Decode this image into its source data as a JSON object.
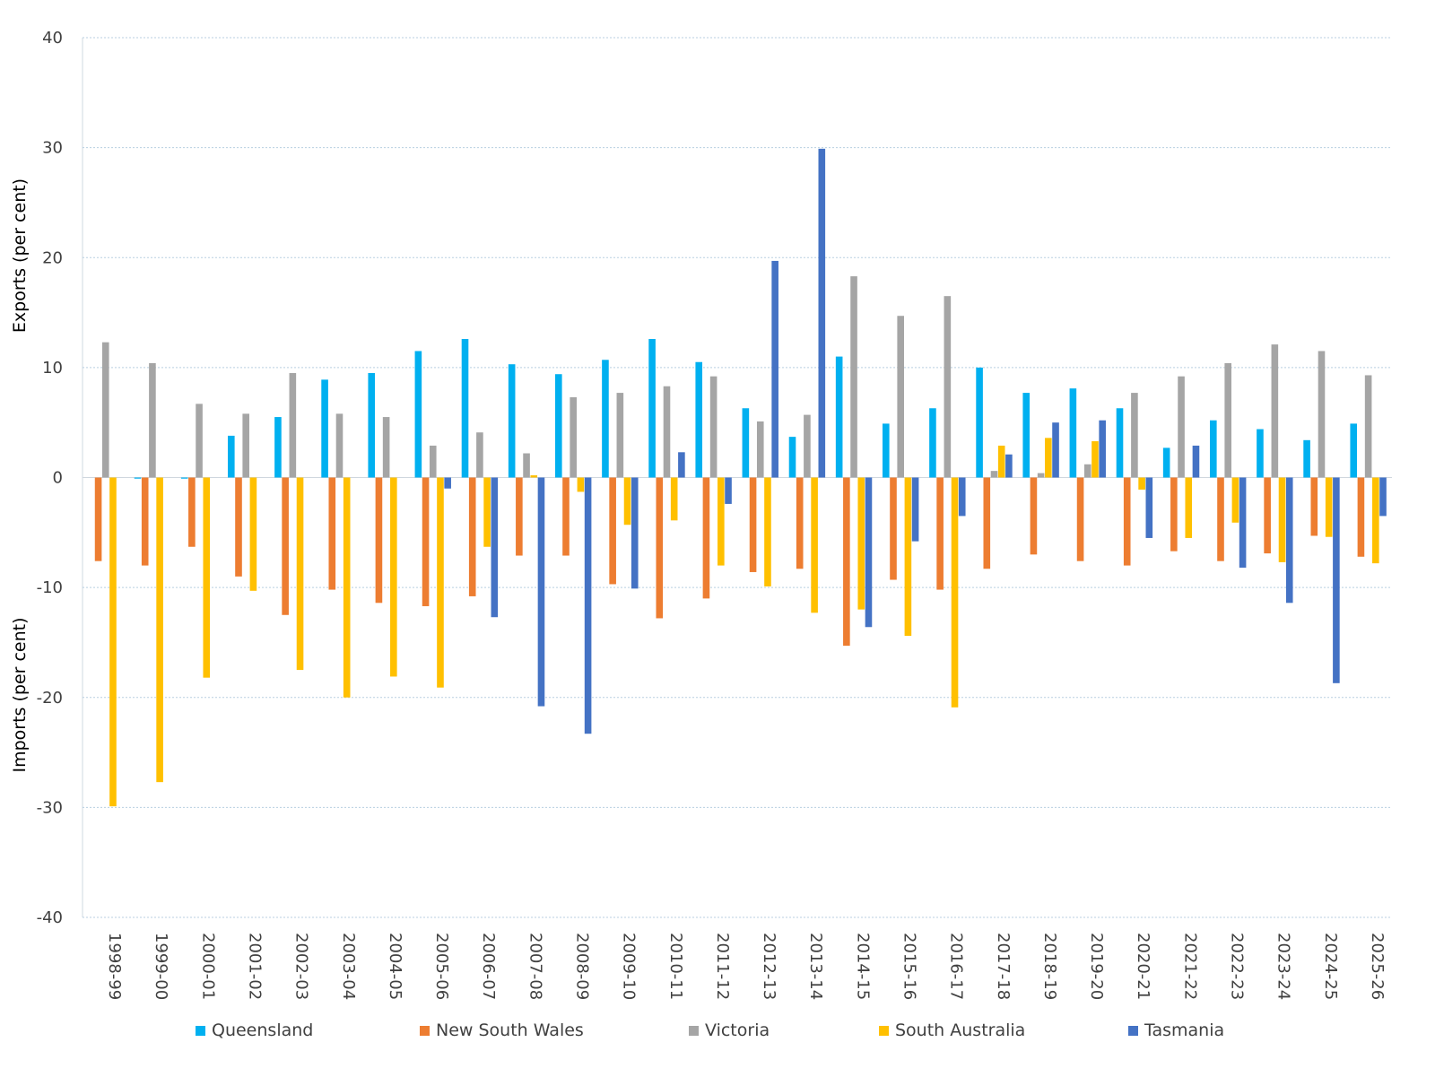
{
  "chart_data": {
    "type": "bar",
    "ylabel_top": "Exports (per cent)",
    "ylabel_bottom": "Imports (per cent)",
    "ylim": [
      -40,
      40
    ],
    "yticks": [
      40,
      30,
      20,
      10,
      0,
      -10,
      -20,
      -30,
      -40
    ],
    "grid": true,
    "legend_position": "bottom",
    "categories": [
      "1998-99",
      "1999-00",
      "2000-01",
      "2001-02",
      "2002-03",
      "2003-04",
      "2004-05",
      "2005-06",
      "2006-07",
      "2007-08",
      "2008-09",
      "2009-10",
      "2010-11",
      "2011-12",
      "2012-13",
      "2013-14",
      "2014-15",
      "2015-16",
      "2016-17",
      "2017-18",
      "2018-19",
      "2019-20",
      "2020-21",
      "2021-22",
      "2022-23",
      "2023-24",
      "2024-25",
      "2025-26"
    ],
    "series": [
      {
        "name": "Queensland",
        "color": "#00B0F0",
        "values": [
          0,
          -0.1,
          -0.1,
          3.8,
          5.5,
          8.9,
          9.5,
          11.5,
          12.6,
          10.3,
          9.4,
          10.7,
          12.6,
          10.5,
          6.3,
          3.7,
          11.0,
          4.9,
          6.3,
          10.0,
          7.7,
          8.1,
          6.3,
          2.7,
          5.2,
          4.4,
          3.4,
          4.9
        ]
      },
      {
        "name": "New South Wales",
        "color": "#ED7D31",
        "values": [
          -7.6,
          -8.0,
          -6.3,
          -9.0,
          -12.5,
          -10.2,
          -11.4,
          -11.7,
          -10.8,
          -7.1,
          -7.1,
          -9.7,
          -12.8,
          -11.0,
          -8.6,
          -8.3,
          -15.3,
          -9.3,
          -10.2,
          -8.3,
          -7.0,
          -7.6,
          -8.0,
          -6.7,
          -7.6,
          -6.9,
          -5.3,
          -7.2
        ]
      },
      {
        "name": "Victoria",
        "color": "#A5A5A5",
        "values": [
          12.3,
          10.4,
          6.7,
          5.8,
          9.5,
          5.8,
          5.5,
          2.9,
          4.1,
          2.2,
          7.3,
          7.7,
          8.3,
          9.2,
          5.1,
          5.7,
          18.3,
          14.7,
          16.5,
          0.6,
          0.4,
          1.2,
          7.7,
          9.2,
          10.4,
          12.1,
          11.5,
          9.3
        ]
      },
      {
        "name": "South Australia",
        "color": "#FFC000",
        "values": [
          -29.9,
          -27.7,
          -18.2,
          -10.3,
          -17.5,
          -20.0,
          -18.1,
          -19.1,
          -6.3,
          0.2,
          -1.3,
          -4.3,
          -3.9,
          -8.0,
          -9.9,
          -12.3,
          -12.0,
          -14.4,
          -20.9,
          2.9,
          3.6,
          3.3,
          -1.1,
          -5.5,
          -4.1,
          -7.7,
          -5.4,
          -7.8
        ]
      },
      {
        "name": "Tasmania",
        "color": "#4472C4",
        "values": [
          0,
          0,
          0,
          0,
          0,
          0,
          0,
          -1.0,
          -12.7,
          -20.8,
          -23.3,
          -10.1,
          2.3,
          -2.4,
          19.7,
          29.9,
          -13.6,
          -5.8,
          -3.5,
          2.1,
          5.0,
          5.2,
          -5.5,
          2.9,
          -8.2,
          -11.4,
          -18.7,
          -3.5
        ]
      }
    ]
  }
}
